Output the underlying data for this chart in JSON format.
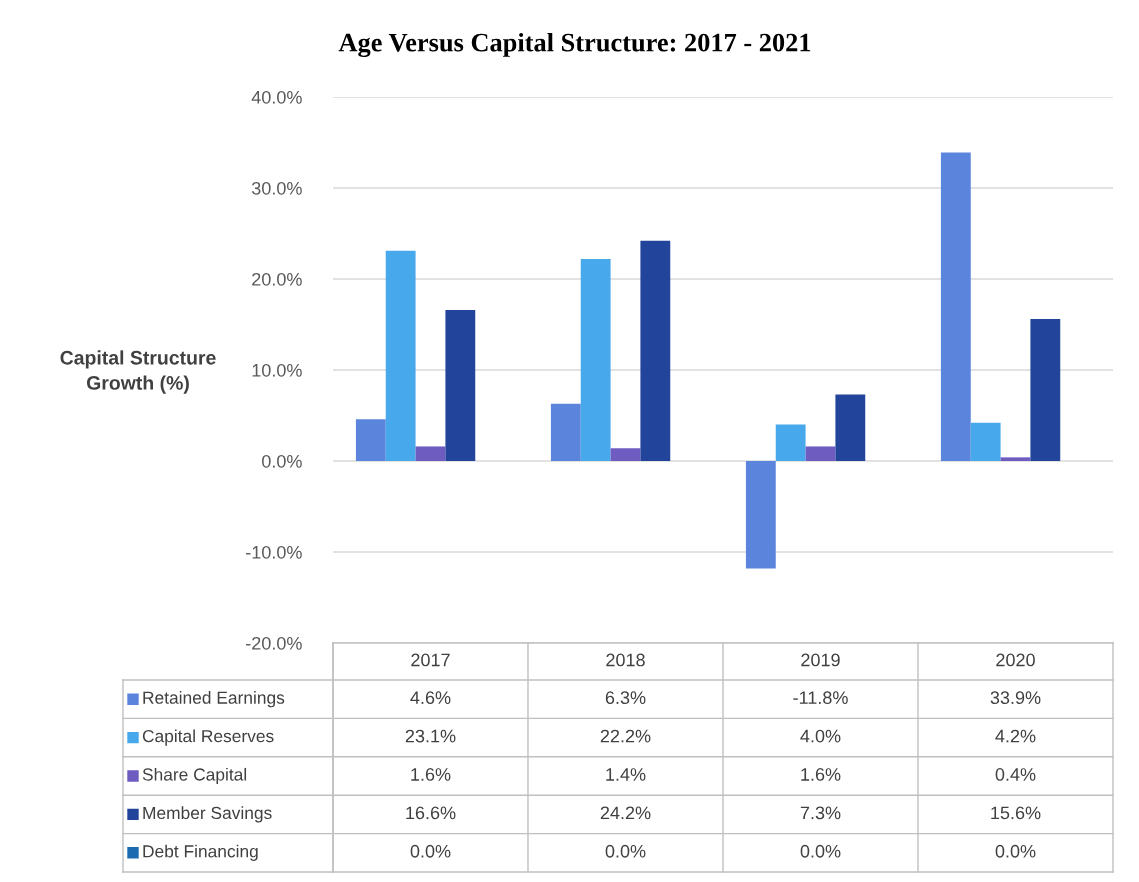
{
  "chart_data": {
    "type": "bar",
    "title": "Age Versus Capital Structure: 2017 - 2021",
    "ylabel": "Capital Structure\nGrowth (%)",
    "categories": [
      "2017",
      "2018",
      "2019",
      "2020"
    ],
    "series": [
      {
        "name": "Retained Earnings",
        "color": "#5b84dc",
        "values": [
          4.6,
          6.3,
          -11.8,
          33.9
        ],
        "value_labels": [
          "4.6%",
          "6.3%",
          "-11.8%",
          "33.9%"
        ]
      },
      {
        "name": "Capital Reserves",
        "color": "#47a8ec",
        "values": [
          23.1,
          22.2,
          4.0,
          4.2
        ],
        "value_labels": [
          "23.1%",
          "22.2%",
          "4.0%",
          "4.2%"
        ]
      },
      {
        "name": "Share Capital",
        "color": "#6f5cc0",
        "values": [
          1.6,
          1.4,
          1.6,
          0.4
        ],
        "value_labels": [
          "1.6%",
          "1.4%",
          "1.6%",
          "0.4%"
        ]
      },
      {
        "name": "Member Savings",
        "color": "#22449a",
        "values": [
          16.6,
          24.2,
          7.3,
          15.6
        ],
        "value_labels": [
          "16.6%",
          "24.2%",
          "7.3%",
          "15.6%"
        ]
      },
      {
        "name": "Debt Financing",
        "color": "#1a6bb0",
        "values": [
          0.0,
          0.0,
          0.0,
          0.0
        ],
        "value_labels": [
          "0.0%",
          "0.0%",
          "0.0%",
          "0.0%"
        ]
      }
    ],
    "ylim": [
      -20,
      40
    ],
    "yticks": [
      {
        "value": -20,
        "label": "-20.0%"
      },
      {
        "value": -10,
        "label": "-10.0%"
      },
      {
        "value": 0,
        "label": "0.0%"
      },
      {
        "value": 10,
        "label": "10.0%"
      },
      {
        "value": 20,
        "label": "20.0%"
      },
      {
        "value": 30,
        "label": "30.0%"
      },
      {
        "value": 40,
        "label": "40.0%"
      }
    ],
    "grid": "y",
    "legend": "bottom"
  }
}
